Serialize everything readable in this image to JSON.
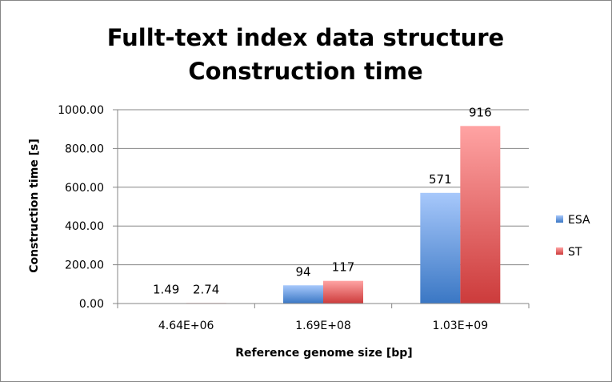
{
  "chart_data": {
    "type": "bar",
    "title_lines": [
      "Fullt-text index data structure",
      "Construction time"
    ],
    "xlabel": "Reference genome size [bp]",
    "ylabel": "Construction time [s]",
    "categories": [
      "4.64E+06",
      "1.69E+08",
      "1.03E+09"
    ],
    "series": [
      {
        "name": "ESA",
        "values": [
          1.49,
          94,
          571
        ],
        "labels": [
          "1.49",
          "94",
          "571"
        ],
        "color": "#4F81BD"
      },
      {
        "name": "ST",
        "values": [
          2.74,
          117,
          916
        ],
        "labels": [
          "2.74",
          "117",
          "916"
        ],
        "color": "#C0504D"
      }
    ],
    "ylim": [
      0,
      1000
    ],
    "yticks": [
      0,
      200,
      400,
      600,
      800,
      1000
    ],
    "ytick_labels": [
      "0.00",
      "200.00",
      "400.00",
      "600.00",
      "800.00",
      "1000.00"
    ],
    "grid": true,
    "legend_position": "right"
  }
}
